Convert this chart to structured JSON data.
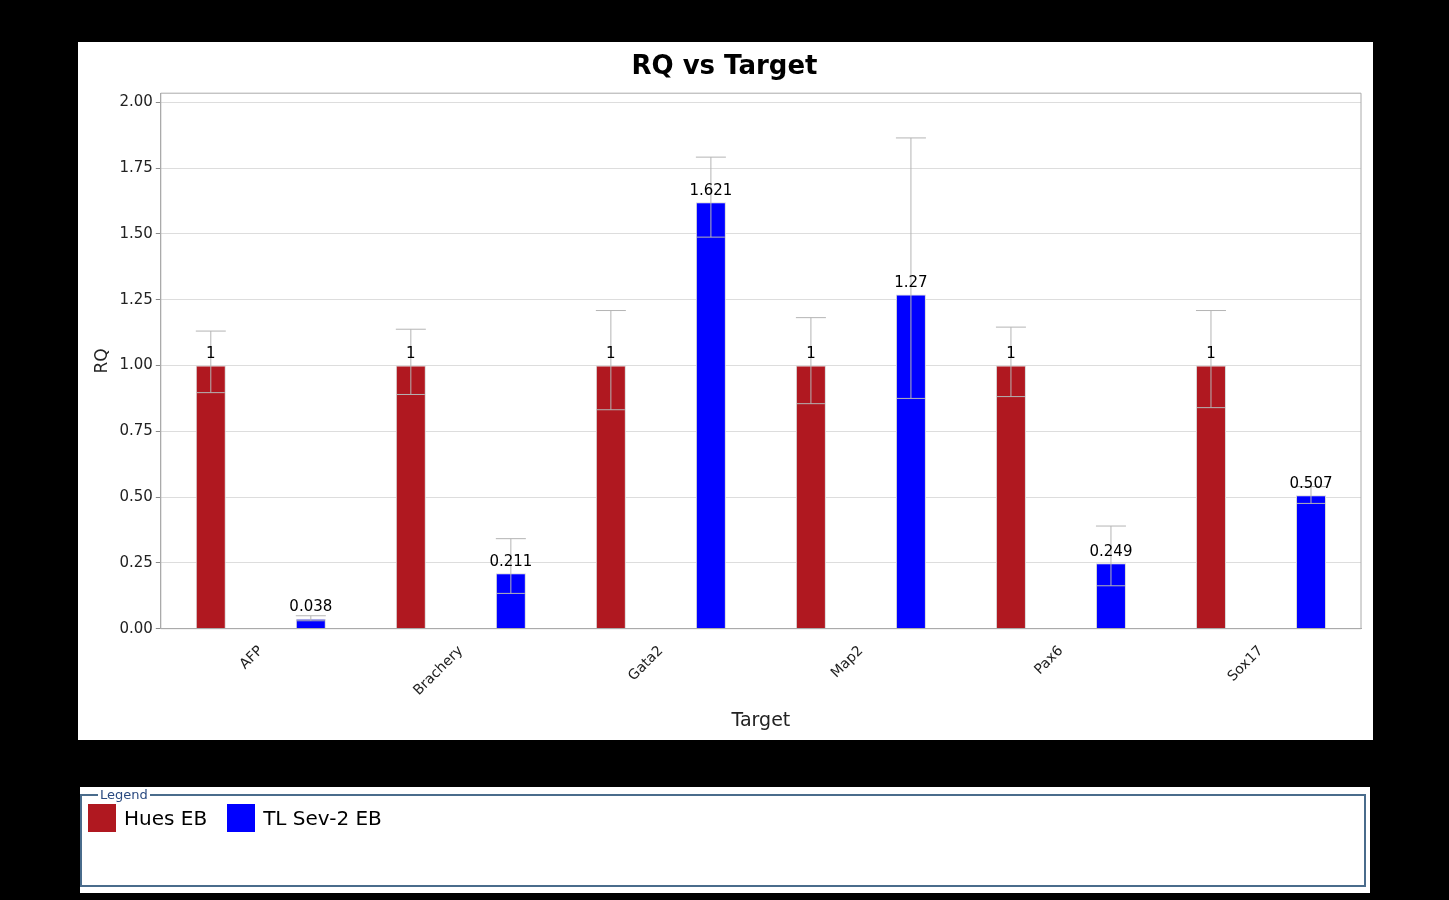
{
  "chart_data": {
    "type": "bar",
    "title": "RQ vs Target",
    "xlabel": "Target",
    "ylabel": "RQ",
    "legend_title": "Legend",
    "categories": [
      "AFP",
      "Brachery",
      "Gata2",
      "Map2",
      "Pax6",
      "Sox17"
    ],
    "series": [
      {
        "name": "Hues EB",
        "color": "#b01820",
        "values": [
          1,
          1,
          1,
          1,
          1,
          1
        ],
        "errors": [
          [
            0.897,
            1.131
          ],
          [
            0.89,
            1.138
          ],
          [
            0.832,
            1.209
          ],
          [
            0.855,
            1.182
          ],
          [
            0.882,
            1.146
          ],
          [
            0.84,
            1.209
          ]
        ]
      },
      {
        "name": "TL Sev-2 EB",
        "color": "#0000ff",
        "values": [
          0.038,
          0.211,
          1.621,
          1.27,
          0.249,
          0.507
        ],
        "errors": [
          [
            0.03,
            0.049
          ],
          [
            0.134,
            0.342
          ],
          [
            1.488,
            1.792
          ],
          [
            0.875,
            1.865
          ],
          [
            0.163,
            0.39
          ],
          [
            0.476,
            0.54
          ]
        ]
      }
    ],
    "ylim": [
      0,
      2.035
    ],
    "yticks": [
      {
        "value": 0,
        "label": "0.00"
      },
      {
        "value": 0.25,
        "label": "0.25"
      },
      {
        "value": 0.5,
        "label": "0.50"
      },
      {
        "value": 0.75,
        "label": "0.75"
      },
      {
        "value": 1,
        "label": "1.00"
      },
      {
        "value": 1.25,
        "label": "1.25"
      },
      {
        "value": 1.5,
        "label": "1.50"
      },
      {
        "value": 1.75,
        "label": "1.75"
      },
      {
        "value": 2,
        "label": "2.00"
      }
    ],
    "grid": "y",
    "legend": "bottom",
    "data_labels": true
  }
}
